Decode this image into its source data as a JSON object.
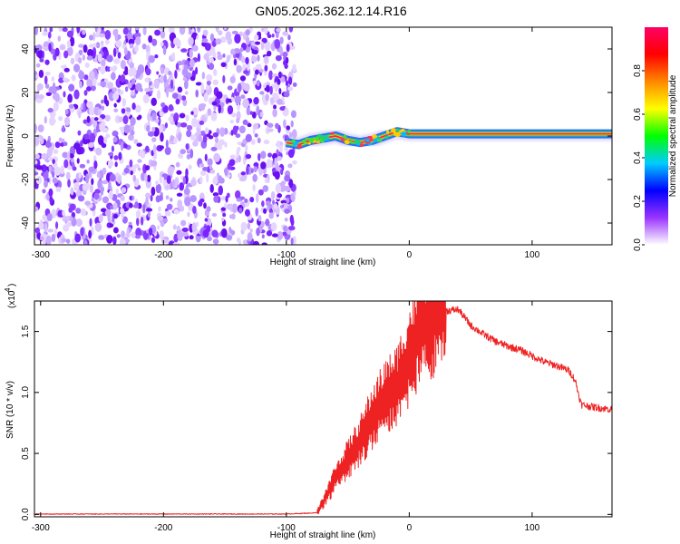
{
  "title": "GN05.2025.362.12.14.R16",
  "chart_data": [
    {
      "type": "heatmap",
      "xlabel": "Height of straight line (km)",
      "ylabel": "Frequency (Hz)",
      "xlim": [
        -305,
        165
      ],
      "ylim": [
        -50,
        50
      ],
      "xticks": [
        -300,
        -200,
        -100,
        0,
        100
      ],
      "yticks": [
        -40,
        -20,
        0,
        20,
        40
      ],
      "noise_region_x": [
        -305,
        -93
      ],
      "signal_track": {
        "x": [
          -100,
          -90,
          -80,
          -70,
          -60,
          -50,
          -40,
          -30,
          -20,
          -10,
          0,
          50,
          100,
          165
        ],
        "frequency": [
          -3,
          -4,
          -2,
          -1,
          0,
          -2,
          -3,
          -2,
          0,
          2,
          1,
          1,
          1,
          1
        ]
      },
      "colorbar": {
        "label": "Normalized spectral amplitude",
        "range": [
          0,
          1
        ],
        "ticks": [
          0.0,
          0.2,
          0.4,
          0.6,
          0.8
        ],
        "tick_labels": [
          "0.0",
          "0.2",
          "0.4",
          "0.6",
          "0.8"
        ],
        "colors": [
          "#ffffff",
          "#9933ff",
          "#0000ff",
          "#00ccff",
          "#00ff00",
          "#ffff00",
          "#ff8800",
          "#ff0000",
          "#ff0066"
        ]
      }
    },
    {
      "type": "line",
      "xlabel": "Height of straight line (km)",
      "ylabel": "SNR (10 * v/v)",
      "y_multiplier": "(x10",
      "y_multiplier_exp": "4",
      "xlim": [
        -305,
        165
      ],
      "ylim": [
        -0.02,
        1.75
      ],
      "xticks": [
        -300,
        -200,
        -100,
        0,
        100
      ],
      "yticks": [
        0.0,
        0.5,
        1.0,
        1.5
      ],
      "ytick_labels": [
        "0.0",
        "0.5",
        "1.0",
        "1.5"
      ],
      "series": [
        {
          "color": "#ee2222",
          "x": [
            -305,
            -200,
            -100,
            -75,
            -70,
            -60,
            -50,
            -40,
            -30,
            -20,
            -10,
            0,
            10,
            20,
            30,
            40,
            50,
            60,
            70,
            80,
            90,
            100,
            110,
            120,
            130,
            135,
            140,
            150,
            165
          ],
          "y": [
            0.0,
            0.0,
            0.0,
            0.01,
            0.1,
            0.3,
            0.45,
            0.6,
            0.8,
            0.95,
            1.05,
            1.3,
            1.52,
            1.63,
            1.67,
            1.68,
            1.55,
            1.48,
            1.42,
            1.38,
            1.35,
            1.3,
            1.25,
            1.22,
            1.18,
            1.1,
            0.9,
            0.88,
            0.86
          ]
        }
      ]
    }
  ]
}
